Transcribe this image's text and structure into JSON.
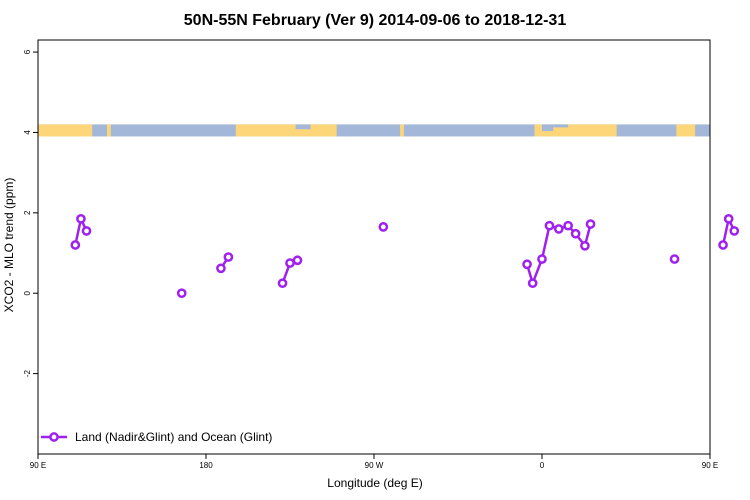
{
  "chart_data": {
    "type": "line",
    "title": "50N-55N February (Ver 9)   2014-09-06 to 2018-12-31",
    "xlabel": "Longitude (deg E)",
    "ylabel": "XCO2 - MLO trend (ppm)",
    "xlim": [
      90,
      450
    ],
    "ylim": [
      -4,
      6.3
    ],
    "x_ticks": [
      {
        "value": 90,
        "label": "90 E"
      },
      {
        "value": 180,
        "label": "180"
      },
      {
        "value": 270,
        "label": "90 W"
      },
      {
        "value": 360,
        "label": "0"
      },
      {
        "value": 450,
        "label": "90 E"
      },
      {
        "value": 540,
        "label": "180"
      }
    ],
    "y_ticks": [
      {
        "value": -2,
        "label": "-2"
      },
      {
        "value": 0,
        "label": "0"
      },
      {
        "value": 2,
        "label": "2"
      },
      {
        "value": 4,
        "label": "4"
      },
      {
        "value": 6,
        "label": "6"
      }
    ],
    "land_ocean_band": {
      "y_min": 3.9,
      "y_max": 4.2,
      "land_color": "#fdd67a",
      "ocean_color": "#a3b8d8"
    },
    "series": [
      {
        "name": "Land (Nadir&Glint) and Ocean (Glint)",
        "color": "#a020f0",
        "segments": [
          [
            [
              110,
              1.2
            ],
            [
              113,
              1.85
            ],
            [
              116,
              1.55
            ]
          ],
          [
            [
              167,
              0.0
            ]
          ],
          [
            [
              188,
              0.62
            ],
            [
              192,
              0.9
            ]
          ],
          [
            [
              221,
              0.25
            ],
            [
              225,
              0.75
            ],
            [
              229,
              0.82
            ]
          ],
          [
            [
              275,
              1.65
            ]
          ],
          [
            [
              352,
              0.72
            ],
            [
              355,
              0.25
            ],
            [
              360,
              0.85
            ],
            [
              364,
              1.68
            ],
            [
              369,
              1.6
            ],
            [
              374,
              1.68
            ],
            [
              378,
              1.48
            ],
            [
              383,
              1.18
            ],
            [
              386,
              1.72
            ]
          ],
          [
            [
              431,
              0.85
            ]
          ],
          [
            [
              457,
              1.2
            ],
            [
              460,
              1.85
            ],
            [
              463,
              1.55
            ]
          ]
        ]
      }
    ],
    "legend_position": "bottom-left"
  }
}
